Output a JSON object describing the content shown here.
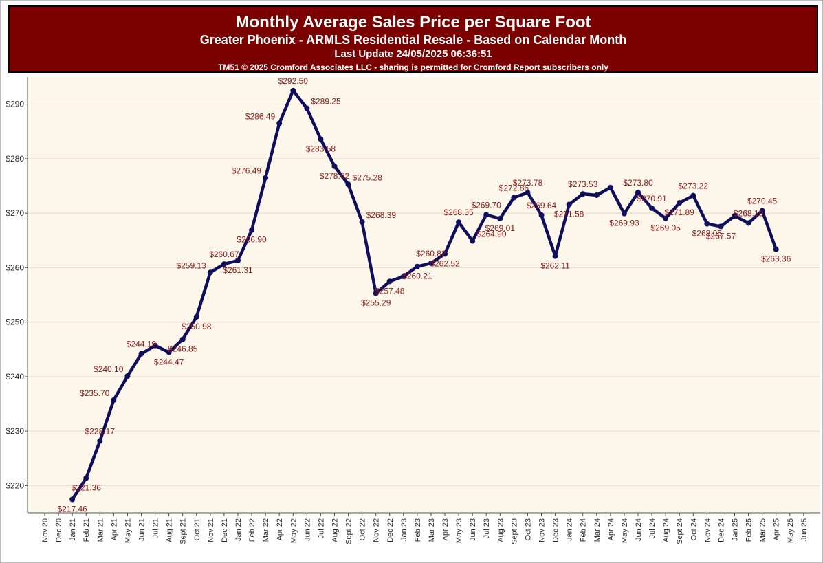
{
  "header": {
    "title": "Monthly Average Sales Price per Square Foot",
    "subtitle": "Greater Phoenix - ARMLS Residential Resale - Based on Calendar Month",
    "update": "Last Update 24/05/2025 06:36:51",
    "copyright": "TM51 © 2025 Cromford Associates LLC - sharing is permitted for Cromford Report subscribers only"
  },
  "colors": {
    "header_bg": "#7b0000",
    "plot_bg": "#fdf6ea",
    "line": "#0f0f5c",
    "label": "#8b1a1a",
    "grid": "#e4dccd"
  },
  "chart_data": {
    "type": "line",
    "title": "Monthly Average Sales Price per Square Foot",
    "xlabel": "",
    "ylabel": "",
    "ylim": [
      215,
      295
    ],
    "grid": true,
    "y_ticks": [
      "$220",
      "$230",
      "$240",
      "$250",
      "$260",
      "$270",
      "$280",
      "$290"
    ],
    "y_tick_values": [
      220,
      230,
      240,
      250,
      260,
      270,
      280,
      290
    ],
    "categories": [
      "Nov 20",
      "Dec 20",
      "Jan 21",
      "Feb 21",
      "Mar 21",
      "Apr 21",
      "May 21",
      "Jun 21",
      "Jul 21",
      "Aug 21",
      "Sept 21",
      "Oct 21",
      "Nov 21",
      "Dec 21",
      "Jan 22",
      "Feb 22",
      "Mar 22",
      "Apr 22",
      "May 22",
      "Jun 22",
      "Jul 22",
      "Aug 22",
      "Sept 22",
      "Oct 22",
      "Nov 22",
      "Dec 22",
      "Jan 23",
      "Feb 23",
      "Mar 23",
      "Apr 23",
      "May 23",
      "Jun 23",
      "Jul 23",
      "Aug 23",
      "Sept 23",
      "Oct 23",
      "Nov 23",
      "Dec 23",
      "Jan 24",
      "Feb 24",
      "Mar 24",
      "Apr 24",
      "May 24",
      "Jun 24",
      "Jul 24",
      "Aug 24",
      "Sept 24",
      "Oct 24",
      "Nov 24",
      "Dec 24",
      "Jan 25",
      "Feb 25",
      "Mar 25",
      "Apr 25",
      "May 25",
      "Jun 25"
    ],
    "series": [
      {
        "values": [
          null,
          null,
          217.46,
          221.36,
          228.17,
          235.7,
          240.1,
          244.19,
          245.7,
          244.47,
          246.85,
          250.98,
          259.13,
          260.67,
          261.31,
          266.9,
          276.49,
          286.49,
          292.5,
          289.25,
          283.58,
          278.62,
          275.28,
          268.39,
          255.29,
          257.48,
          258.4,
          260.21,
          260.82,
          262.52,
          268.35,
          264.9,
          269.7,
          269.01,
          272.86,
          273.78,
          269.64,
          262.11,
          271.58,
          273.53,
          273.3,
          274.7,
          269.93,
          273.8,
          270.91,
          269.05,
          271.89,
          273.22,
          268.05,
          267.57,
          269.5,
          268.19,
          270.45,
          263.36,
          null,
          null
        ],
        "labels": [
          "",
          "",
          "$217.46",
          "$221.36",
          "$228.17",
          "$235.70",
          "$240.10",
          "$244.19",
          "",
          "$244.47",
          "$246.85",
          "$250.98",
          "$259.13",
          "$260.67",
          "$261.31",
          "$266.90",
          "$276.49",
          "$286.49",
          "$292.50",
          "$289.25",
          "$283.58",
          "$278.62",
          "$275.28",
          "$268.39",
          "$255.29",
          "$257.48",
          "",
          "$260.21",
          "$260.82",
          "$262.52",
          "$268.35",
          "$264.90",
          "$269.70",
          "$269.01",
          "$272.86",
          "$273.78",
          "$269.64",
          "$262.11",
          "$271.58",
          "$273.53",
          "",
          "",
          "$269.93",
          "$273.80",
          "$270.91",
          "$269.05",
          "$271.89",
          "$273.22",
          "$268.05",
          "$267.57",
          "",
          "$268.19",
          "$270.45",
          "$263.36",
          "",
          ""
        ],
        "label_pos": [
          "",
          "",
          "below",
          "below",
          "above",
          "left",
          "left",
          "above",
          "",
          "below",
          "below",
          "below",
          "left",
          "above",
          "below",
          "below",
          "left",
          "left",
          "above",
          "right",
          "below",
          "below",
          "right",
          "right",
          "below",
          "below",
          "",
          "below",
          "above",
          "below",
          "above",
          "right",
          "above",
          "below",
          "above",
          "above",
          "above",
          "below",
          "below",
          "above",
          "",
          "",
          "below",
          "above",
          "above",
          "below",
          "below",
          "above",
          "below",
          "below",
          "",
          "above",
          "above",
          "below",
          "",
          ""
        ]
      }
    ]
  }
}
